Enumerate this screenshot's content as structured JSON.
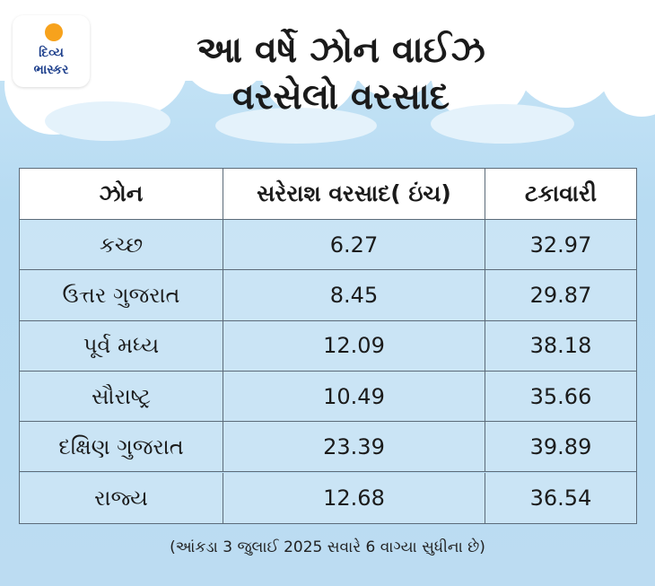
{
  "logo": {
    "line1": "દિવ્ય",
    "line2": "ભાસ્કર"
  },
  "title": {
    "line1": "આ વર્ષે ઝોન વાઈઝ",
    "line2": "વરસેલો વરસાદ"
  },
  "chart_data": {
    "type": "table",
    "columns": [
      "ઝોન",
      "સરેરાશ વરસાદ( ઇંચ)",
      "ટકાવારી"
    ],
    "rows": [
      [
        "કચ્છ",
        "6.27",
        "32.97"
      ],
      [
        "ઉત્તર ગુજરાત",
        "8.45",
        "29.87"
      ],
      [
        "પૂર્વ મધ્ય",
        "12.09",
        "38.18"
      ],
      [
        "સૌરાષ્ટ્ર",
        "10.49",
        "35.66"
      ],
      [
        "દક્ષિણ ગુજરાત",
        "23.39",
        "39.89"
      ],
      [
        "રાજ્ય",
        "12.68",
        "36.54"
      ]
    ]
  },
  "footnote": "(આંકડા 3 જુલાઈ 2025 સવારે 6 વાગ્યા સુધીના છે)",
  "colors": {
    "header_bg": "#ffffff",
    "row_bg": "#cde5f6",
    "border": "#5c6b79",
    "logo_text": "#1d3f8c",
    "sun": "#f7a21c"
  }
}
